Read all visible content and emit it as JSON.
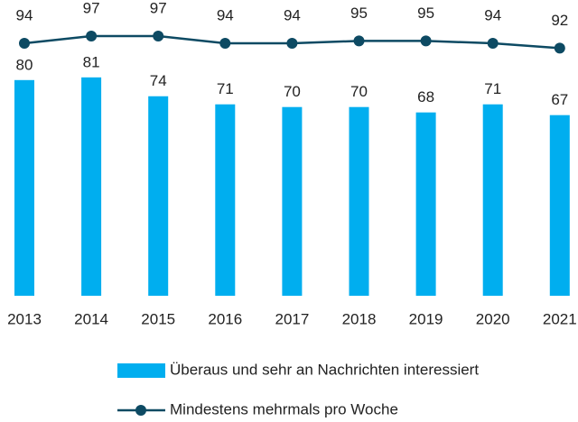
{
  "chart_data": {
    "type": "bar",
    "categories": [
      "2013",
      "2014",
      "2015",
      "2016",
      "2017",
      "2018",
      "2019",
      "2020",
      "2021"
    ],
    "series": [
      {
        "name": "Überaus und sehr an Nachrichten interessiert",
        "type": "bar",
        "color": "#00aeef",
        "values": [
          80,
          81,
          74,
          71,
          70,
          70,
          68,
          71,
          67
        ]
      },
      {
        "name": "Mindestens mehrmals pro Woche",
        "type": "line",
        "axis": "y2",
        "color": "#0d4a63",
        "values": [
          94,
          97,
          97,
          94,
          94,
          95,
          95,
          94,
          92
        ]
      }
    ],
    "ylim": [
      0,
      100
    ],
    "y2lim": [
      90,
      100
    ],
    "grid": false,
    "legend": "bottom"
  }
}
